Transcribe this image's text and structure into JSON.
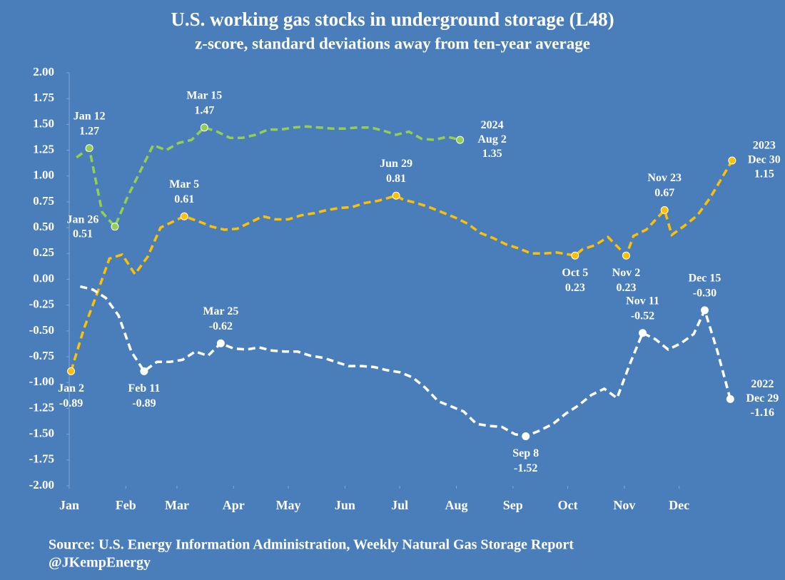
{
  "chart_data": {
    "type": "line",
    "title": "U.S. working gas stocks in underground storage (L48)",
    "subtitle": "z-score, standard deviations away from ten-year average",
    "source": [
      "Source: U.S. Energy Information Administration, Weekly Natural Gas Storage Report",
      "@JKempEnergy"
    ],
    "xlim": [
      1,
      366
    ],
    "xticks": [
      {
        "value": 1,
        "label": "Jan"
      },
      {
        "value": 32,
        "label": "Feb"
      },
      {
        "value": 60,
        "label": "Mar"
      },
      {
        "value": 91,
        "label": "Apr"
      },
      {
        "value": 121,
        "label": "May"
      },
      {
        "value": 152,
        "label": "Jun"
      },
      {
        "value": 182,
        "label": "Jul"
      },
      {
        "value": 213,
        "label": "Aug"
      },
      {
        "value": 244,
        "label": "Sep"
      },
      {
        "value": 274,
        "label": "Oct"
      },
      {
        "value": 305,
        "label": "Nov"
      },
      {
        "value": 335,
        "label": "Dec"
      }
    ],
    "ylim": [
      -2,
      2
    ],
    "yticks": [
      {
        "value": 2,
        "label": "2.00"
      },
      {
        "value": 1.75,
        "label": "1.75"
      },
      {
        "value": 1.5,
        "label": "1.50"
      },
      {
        "value": 1.25,
        "label": "1.25"
      },
      {
        "value": 1,
        "label": "1.00"
      },
      {
        "value": 0.75,
        "label": "0.75"
      },
      {
        "value": 0.5,
        "label": "0.50"
      },
      {
        "value": 0.25,
        "label": "0.25"
      },
      {
        "value": 0,
        "label": "0.00"
      },
      {
        "value": -0.25,
        "label": "-0.25"
      },
      {
        "value": -0.5,
        "label": "-0.50"
      },
      {
        "value": -0.75,
        "label": "-0.75"
      },
      {
        "value": -1,
        "label": "-1.00"
      },
      {
        "value": -1.25,
        "label": "-1.25"
      },
      {
        "value": -1.5,
        "label": "-1.50"
      },
      {
        "value": -1.75,
        "label": "-1.75"
      },
      {
        "value": -2,
        "label": "-2.00"
      }
    ],
    "series": [
      {
        "name": "2024",
        "color": "#92d050",
        "x": [
          5,
          12,
          19,
          26,
          33,
          40,
          47,
          54,
          61,
          68,
          75,
          82,
          89,
          96,
          103,
          110,
          117,
          124,
          131,
          138,
          145,
          152,
          159,
          166,
          173,
          180,
          187,
          194,
          201,
          208,
          215
        ],
        "values": [
          1.18,
          1.27,
          0.65,
          0.51,
          0.8,
          1.05,
          1.3,
          1.25,
          1.32,
          1.35,
          1.47,
          1.43,
          1.37,
          1.37,
          1.4,
          1.45,
          1.45,
          1.47,
          1.48,
          1.47,
          1.46,
          1.46,
          1.47,
          1.47,
          1.44,
          1.4,
          1.43,
          1.36,
          1.35,
          1.38,
          1.35
        ],
        "point_labels": [
          null,
          "Jan 12",
          null,
          "Jan 26",
          null,
          null,
          null,
          null,
          null,
          null,
          "Mar 15",
          null,
          null,
          null,
          null,
          null,
          null,
          null,
          null,
          null,
          null,
          null,
          null,
          null,
          null,
          null,
          null,
          null,
          null,
          null,
          "Aug 2"
        ],
        "value_labels": [
          null,
          "1.27",
          null,
          "0.51",
          null,
          null,
          null,
          null,
          null,
          null,
          "1.47",
          null,
          null,
          null,
          null,
          null,
          null,
          null,
          null,
          null,
          null,
          null,
          null,
          null,
          null,
          null,
          null,
          null,
          null,
          null,
          "1.35"
        ]
      },
      {
        "name": "2023",
        "color": "#ffc000",
        "x": [
          2,
          9,
          16,
          23,
          30,
          37,
          44,
          51,
          58,
          64,
          72,
          79,
          86,
          93,
          100,
          107,
          114,
          121,
          128,
          135,
          142,
          149,
          156,
          163,
          170,
          180,
          184,
          191,
          198,
          205,
          212,
          219,
          226,
          233,
          240,
          247,
          254,
          261,
          268,
          278,
          282,
          289,
          296,
          306,
          310,
          317,
          327,
          331,
          338,
          345,
          352,
          364
        ],
        "values": [
          -0.89,
          -0.48,
          -0.15,
          0.2,
          0.24,
          0.05,
          0.22,
          0.5,
          0.56,
          0.61,
          0.56,
          0.51,
          0.48,
          0.49,
          0.55,
          0.61,
          0.58,
          0.58,
          0.62,
          0.64,
          0.67,
          0.69,
          0.7,
          0.74,
          0.76,
          0.81,
          0.77,
          0.74,
          0.7,
          0.65,
          0.6,
          0.54,
          0.45,
          0.4,
          0.34,
          0.3,
          0.25,
          0.25,
          0.26,
          0.23,
          0.29,
          0.33,
          0.41,
          0.23,
          0.42,
          0.48,
          0.67,
          0.43,
          0.52,
          0.62,
          0.79,
          1.15
        ],
        "point_labels": [
          "Jan 2",
          null,
          null,
          null,
          null,
          null,
          null,
          null,
          null,
          "Mar 5",
          null,
          null,
          null,
          null,
          null,
          null,
          null,
          null,
          null,
          null,
          null,
          null,
          null,
          null,
          null,
          "Jun 29",
          null,
          null,
          null,
          null,
          null,
          null,
          null,
          null,
          null,
          null,
          null,
          null,
          null,
          "Oct 5",
          null,
          null,
          null,
          "Nov 2",
          null,
          null,
          "Nov 23",
          null,
          null,
          null,
          null,
          "Dec 30"
        ],
        "value_labels": [
          "-0.89",
          null,
          null,
          null,
          null,
          null,
          null,
          null,
          null,
          "0.61",
          null,
          null,
          null,
          null,
          null,
          null,
          null,
          null,
          null,
          null,
          null,
          null,
          null,
          null,
          null,
          "0.81",
          null,
          null,
          null,
          null,
          null,
          null,
          null,
          null,
          null,
          null,
          null,
          null,
          null,
          "0.23",
          null,
          null,
          null,
          "0.23",
          null,
          null,
          "0.67",
          null,
          null,
          null,
          null,
          "1.15"
        ]
      },
      {
        "name": "2022",
        "color": "#ffffff",
        "x": [
          7,
          14,
          21,
          28,
          35,
          42,
          49,
          56,
          63,
          70,
          77,
          84,
          91,
          98,
          105,
          112,
          119,
          126,
          133,
          140,
          147,
          154,
          161,
          168,
          175,
          182,
          189,
          196,
          203,
          210,
          217,
          224,
          231,
          238,
          245,
          251,
          258,
          266,
          273,
          280,
          287,
          294,
          301,
          308,
          315,
          322,
          329,
          336,
          343,
          349,
          356,
          363
        ],
        "values": [
          -0.07,
          -0.1,
          -0.18,
          -0.35,
          -0.7,
          -0.89,
          -0.8,
          -0.8,
          -0.78,
          -0.7,
          -0.74,
          -0.62,
          -0.67,
          -0.68,
          -0.66,
          -0.69,
          -0.7,
          -0.7,
          -0.74,
          -0.76,
          -0.8,
          -0.84,
          -0.84,
          -0.85,
          -0.88,
          -0.9,
          -0.95,
          -1.05,
          -1.18,
          -1.23,
          -1.28,
          -1.4,
          -1.42,
          -1.43,
          -1.5,
          -1.52,
          -1.47,
          -1.4,
          -1.3,
          -1.22,
          -1.12,
          -1.06,
          -1.15,
          -0.82,
          -0.52,
          -0.58,
          -0.68,
          -0.62,
          -0.53,
          -0.3,
          -0.7,
          -1.16
        ],
        "point_labels": [
          null,
          null,
          null,
          null,
          null,
          "Feb 11",
          null,
          null,
          null,
          null,
          null,
          "Mar 25",
          null,
          null,
          null,
          null,
          null,
          null,
          null,
          null,
          null,
          null,
          null,
          null,
          null,
          null,
          null,
          null,
          null,
          null,
          null,
          null,
          null,
          null,
          null,
          "Sep 8",
          null,
          null,
          null,
          null,
          null,
          null,
          null,
          null,
          "Nov 11",
          null,
          null,
          null,
          null,
          "Dec 15",
          null,
          "Dec 29"
        ],
        "value_labels": [
          null,
          null,
          null,
          null,
          null,
          "-0.89",
          null,
          null,
          null,
          null,
          null,
          "-0.62",
          null,
          null,
          null,
          null,
          null,
          null,
          null,
          null,
          null,
          null,
          null,
          null,
          null,
          null,
          null,
          null,
          null,
          null,
          null,
          null,
          null,
          null,
          null,
          "-1.52",
          null,
          null,
          null,
          null,
          null,
          null,
          null,
          null,
          "-0.52",
          null,
          null,
          null,
          null,
          "-0.30",
          null,
          "-1.16"
        ]
      }
    ]
  }
}
